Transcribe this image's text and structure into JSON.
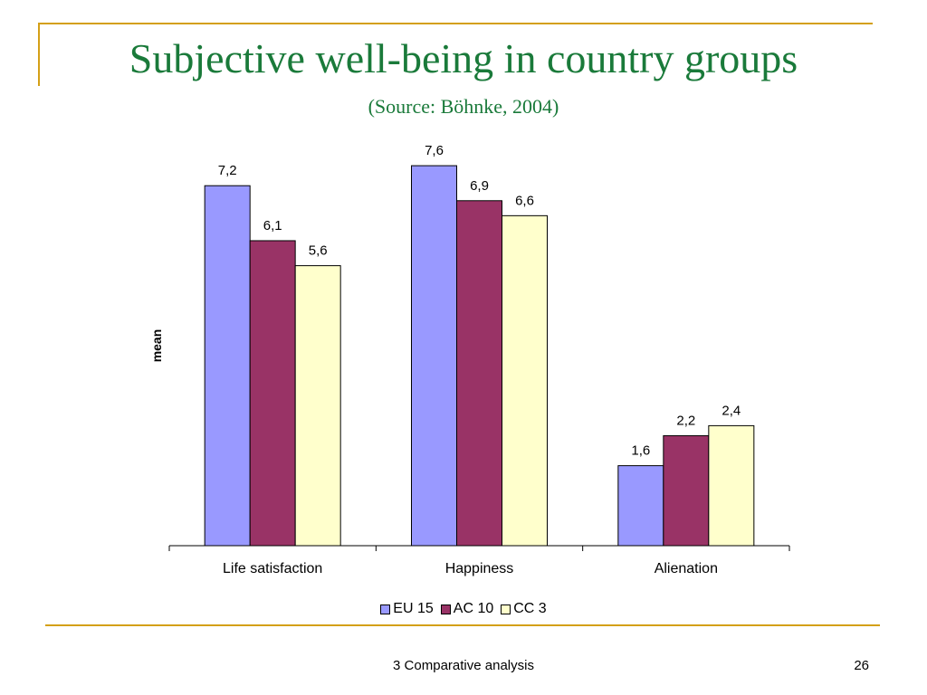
{
  "slide": {
    "title": "Subjective well-being in country groups",
    "subtitle": "(Source: Böhnke, 2004)",
    "footer": "3 Comparative analysis",
    "page_number": "26"
  },
  "colors": {
    "title": "#1a7a3a",
    "rule": "#d4a017"
  },
  "chart_data": {
    "type": "bar",
    "title": "",
    "xlabel": "",
    "ylabel": "mean",
    "ylim": [
      0,
      8
    ],
    "grid": false,
    "legend_position": "bottom",
    "categories": [
      "Life satisfaction",
      "Happiness",
      "Alienation"
    ],
    "series": [
      {
        "name": "EU 15",
        "color": "#9999ff",
        "values": [
          7.2,
          7.6,
          1.6
        ],
        "labels": [
          "7,2",
          "7,6",
          "1,6"
        ]
      },
      {
        "name": "AC 10",
        "color": "#993366",
        "values": [
          6.1,
          6.9,
          2.2
        ],
        "labels": [
          "6,1",
          "6,9",
          "2,2"
        ]
      },
      {
        "name": "CC 3",
        "color": "#ffffcc",
        "values": [
          5.6,
          6.6,
          2.4
        ],
        "labels": [
          "5,6",
          "6,6",
          "2,4"
        ]
      }
    ]
  }
}
